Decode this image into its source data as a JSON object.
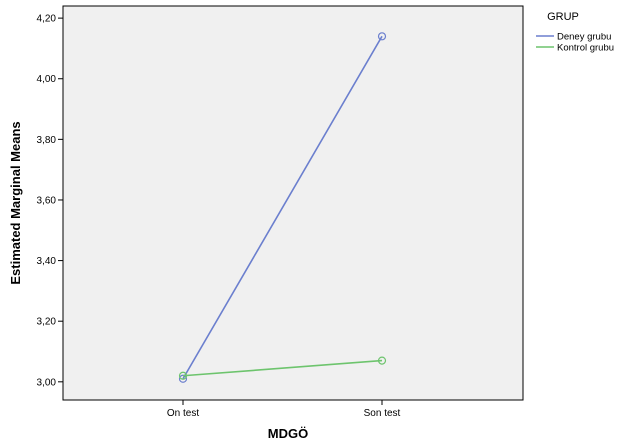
{
  "chart_data": {
    "type": "line",
    "categories": [
      "On test",
      "Son test"
    ],
    "xlabel": "MDGÖ",
    "ylabel": "Estimated Marginal Means",
    "ylim": [
      2.94,
      4.24
    ],
    "yticks": [
      3.0,
      3.2,
      3.4,
      3.6,
      3.8,
      4.0,
      4.2
    ],
    "ytick_labels": [
      "3,00",
      "3,20",
      "3,40",
      "3,60",
      "3,80",
      "4,00",
      "4,20"
    ],
    "grid": false,
    "plot_background": "#f0f0f0",
    "legend": {
      "title": "GRUP",
      "placement": "top-right, outside plot"
    },
    "series": [
      {
        "name": "Deney grubu",
        "color": "#6b7fce",
        "values": [
          3.01,
          4.14
        ]
      },
      {
        "name": "Kontrol grubu",
        "color": "#6dc46d",
        "values": [
          3.02,
          3.07
        ]
      }
    ],
    "markers": "open-circle"
  }
}
